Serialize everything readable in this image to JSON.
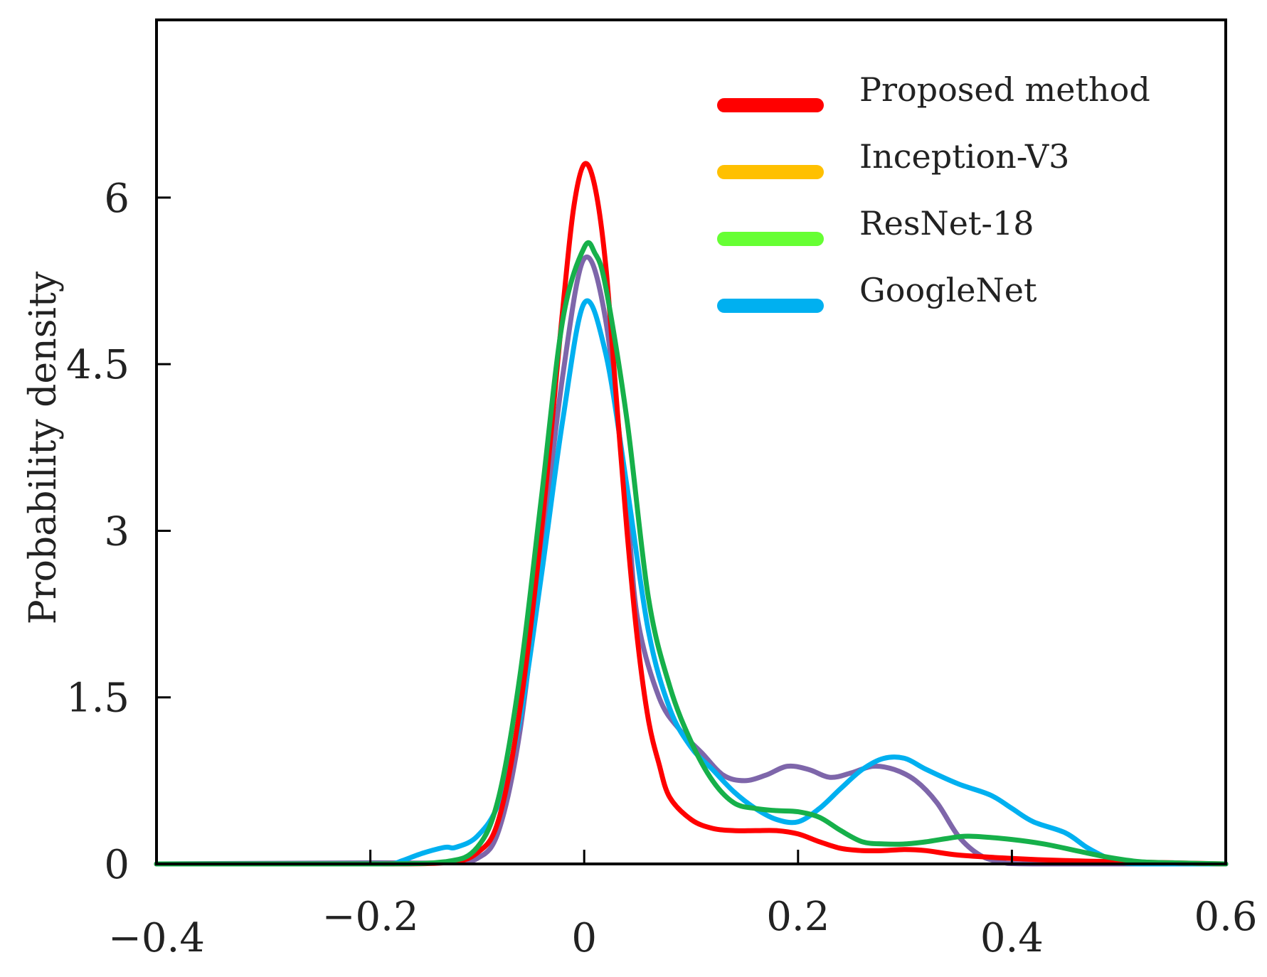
{
  "chart_data": {
    "type": "line",
    "title": "",
    "xlabel": "",
    "ylabel": "Probability density",
    "xlim": [
      -0.4,
      0.6
    ],
    "ylim": [
      0,
      7.6
    ],
    "x_ticks": [
      {
        "value": -0.4,
        "label": "−0.4"
      },
      {
        "value": -0.2,
        "label": "−0.2"
      },
      {
        "value": 0,
        "label": "0"
      },
      {
        "value": 0.2,
        "label": "0.2"
      },
      {
        "value": 0.4,
        "label": "0.4"
      },
      {
        "value": 0.6,
        "label": "0.6"
      }
    ],
    "y_ticks": [
      {
        "value": 0,
        "label": "0"
      },
      {
        "value": 1.5,
        "label": "1.5"
      },
      {
        "value": 3,
        "label": "3"
      },
      {
        "value": 4.5,
        "label": "4.5"
      },
      {
        "value": 6,
        "label": "6"
      }
    ],
    "grid": false,
    "legend": {
      "position": "top-right",
      "entries": [
        {
          "name": "Proposed method",
          "color": "#ff0000"
        },
        {
          "name": "Inception-V3",
          "color": "#ffc000"
        },
        {
          "name": "ResNet-18",
          "color": "#66ff33"
        },
        {
          "name": "GoogleNet",
          "color": "#00b0f0"
        }
      ]
    },
    "series": [
      {
        "name": "Inception-V3 (plotted)",
        "color": "#7e66aa",
        "points": [
          [
            -0.4,
            0
          ],
          [
            -0.2,
            0.01
          ],
          [
            -0.13,
            0.01
          ],
          [
            -0.1,
            0.05
          ],
          [
            -0.08,
            0.3
          ],
          [
            -0.06,
            1.2
          ],
          [
            -0.04,
            2.8
          ],
          [
            -0.02,
            4.4
          ],
          [
            0,
            5.45
          ],
          [
            0.02,
            4.9
          ],
          [
            0.04,
            3.2
          ],
          [
            0.05,
            2.2
          ],
          [
            0.07,
            1.5
          ],
          [
            0.09,
            1.2
          ],
          [
            0.11,
            1.0
          ],
          [
            0.13,
            0.8
          ],
          [
            0.15,
            0.75
          ],
          [
            0.17,
            0.8
          ],
          [
            0.19,
            0.88
          ],
          [
            0.21,
            0.85
          ],
          [
            0.23,
            0.78
          ],
          [
            0.25,
            0.82
          ],
          [
            0.27,
            0.88
          ],
          [
            0.29,
            0.85
          ],
          [
            0.31,
            0.75
          ],
          [
            0.33,
            0.55
          ],
          [
            0.35,
            0.25
          ],
          [
            0.37,
            0.08
          ],
          [
            0.39,
            0.02
          ],
          [
            0.42,
            0
          ],
          [
            0.6,
            0
          ]
        ]
      },
      {
        "name": "GoogleNet",
        "color": "#00b0f0",
        "points": [
          [
            -0.4,
            0
          ],
          [
            -0.2,
            0
          ],
          [
            -0.18,
            0
          ],
          [
            -0.17,
            0.03
          ],
          [
            -0.15,
            0.1
          ],
          [
            -0.13,
            0.15
          ],
          [
            -0.12,
            0.15
          ],
          [
            -0.1,
            0.25
          ],
          [
            -0.08,
            0.55
          ],
          [
            -0.06,
            1.3
          ],
          [
            -0.04,
            2.6
          ],
          [
            -0.02,
            4.0
          ],
          [
            0,
            5.05
          ],
          [
            0.02,
            4.6
          ],
          [
            0.04,
            3.4
          ],
          [
            0.06,
            2.1
          ],
          [
            0.08,
            1.4
          ],
          [
            0.1,
            1.05
          ],
          [
            0.12,
            0.85
          ],
          [
            0.14,
            0.65
          ],
          [
            0.16,
            0.5
          ],
          [
            0.18,
            0.4
          ],
          [
            0.2,
            0.38
          ],
          [
            0.22,
            0.5
          ],
          [
            0.24,
            0.68
          ],
          [
            0.26,
            0.85
          ],
          [
            0.28,
            0.95
          ],
          [
            0.3,
            0.95
          ],
          [
            0.32,
            0.85
          ],
          [
            0.35,
            0.72
          ],
          [
            0.38,
            0.62
          ],
          [
            0.4,
            0.5
          ],
          [
            0.42,
            0.38
          ],
          [
            0.45,
            0.28
          ],
          [
            0.47,
            0.15
          ],
          [
            0.49,
            0.05
          ],
          [
            0.5,
            0.02
          ],
          [
            0.52,
            0
          ],
          [
            0.6,
            0
          ]
        ]
      },
      {
        "name": "Proposed method",
        "color": "#ff0000",
        "points": [
          [
            -0.4,
            0
          ],
          [
            -0.2,
            0
          ],
          [
            -0.13,
            0.01
          ],
          [
            -0.1,
            0.1
          ],
          [
            -0.08,
            0.4
          ],
          [
            -0.06,
            1.4
          ],
          [
            -0.04,
            3.0
          ],
          [
            -0.02,
            5.0
          ],
          [
            -0.01,
            5.9
          ],
          [
            0,
            6.3
          ],
          [
            0.01,
            6.1
          ],
          [
            0.02,
            5.4
          ],
          [
            0.03,
            4.2
          ],
          [
            0.04,
            3.0
          ],
          [
            0.05,
            2.0
          ],
          [
            0.06,
            1.3
          ],
          [
            0.07,
            0.9
          ],
          [
            0.08,
            0.6
          ],
          [
            0.1,
            0.4
          ],
          [
            0.12,
            0.32
          ],
          [
            0.14,
            0.3
          ],
          [
            0.16,
            0.3
          ],
          [
            0.18,
            0.3
          ],
          [
            0.2,
            0.27
          ],
          [
            0.22,
            0.2
          ],
          [
            0.24,
            0.14
          ],
          [
            0.26,
            0.12
          ],
          [
            0.28,
            0.12
          ],
          [
            0.3,
            0.13
          ],
          [
            0.32,
            0.12
          ],
          [
            0.35,
            0.08
          ],
          [
            0.4,
            0.05
          ],
          [
            0.45,
            0.03
          ],
          [
            0.5,
            0.02
          ],
          [
            0.55,
            0.01
          ],
          [
            0.6,
            0
          ]
        ]
      },
      {
        "name": "ResNet-18 (plotted)",
        "color": "#16b04a",
        "points": [
          [
            -0.4,
            0
          ],
          [
            -0.2,
            0
          ],
          [
            -0.13,
            0.02
          ],
          [
            -0.1,
            0.15
          ],
          [
            -0.08,
            0.6
          ],
          [
            -0.06,
            1.7
          ],
          [
            -0.04,
            3.3
          ],
          [
            -0.02,
            4.9
          ],
          [
            0,
            5.55
          ],
          [
            0.01,
            5.5
          ],
          [
            0.02,
            5.2
          ],
          [
            0.04,
            4.0
          ],
          [
            0.06,
            2.4
          ],
          [
            0.08,
            1.6
          ],
          [
            0.1,
            1.1
          ],
          [
            0.12,
            0.75
          ],
          [
            0.14,
            0.55
          ],
          [
            0.16,
            0.5
          ],
          [
            0.18,
            0.48
          ],
          [
            0.2,
            0.47
          ],
          [
            0.22,
            0.42
          ],
          [
            0.24,
            0.3
          ],
          [
            0.26,
            0.2
          ],
          [
            0.28,
            0.18
          ],
          [
            0.3,
            0.18
          ],
          [
            0.32,
            0.2
          ],
          [
            0.34,
            0.23
          ],
          [
            0.36,
            0.25
          ],
          [
            0.4,
            0.22
          ],
          [
            0.43,
            0.18
          ],
          [
            0.46,
            0.12
          ],
          [
            0.49,
            0.06
          ],
          [
            0.52,
            0.02
          ],
          [
            0.55,
            0.01
          ],
          [
            0.6,
            0
          ]
        ]
      }
    ]
  }
}
